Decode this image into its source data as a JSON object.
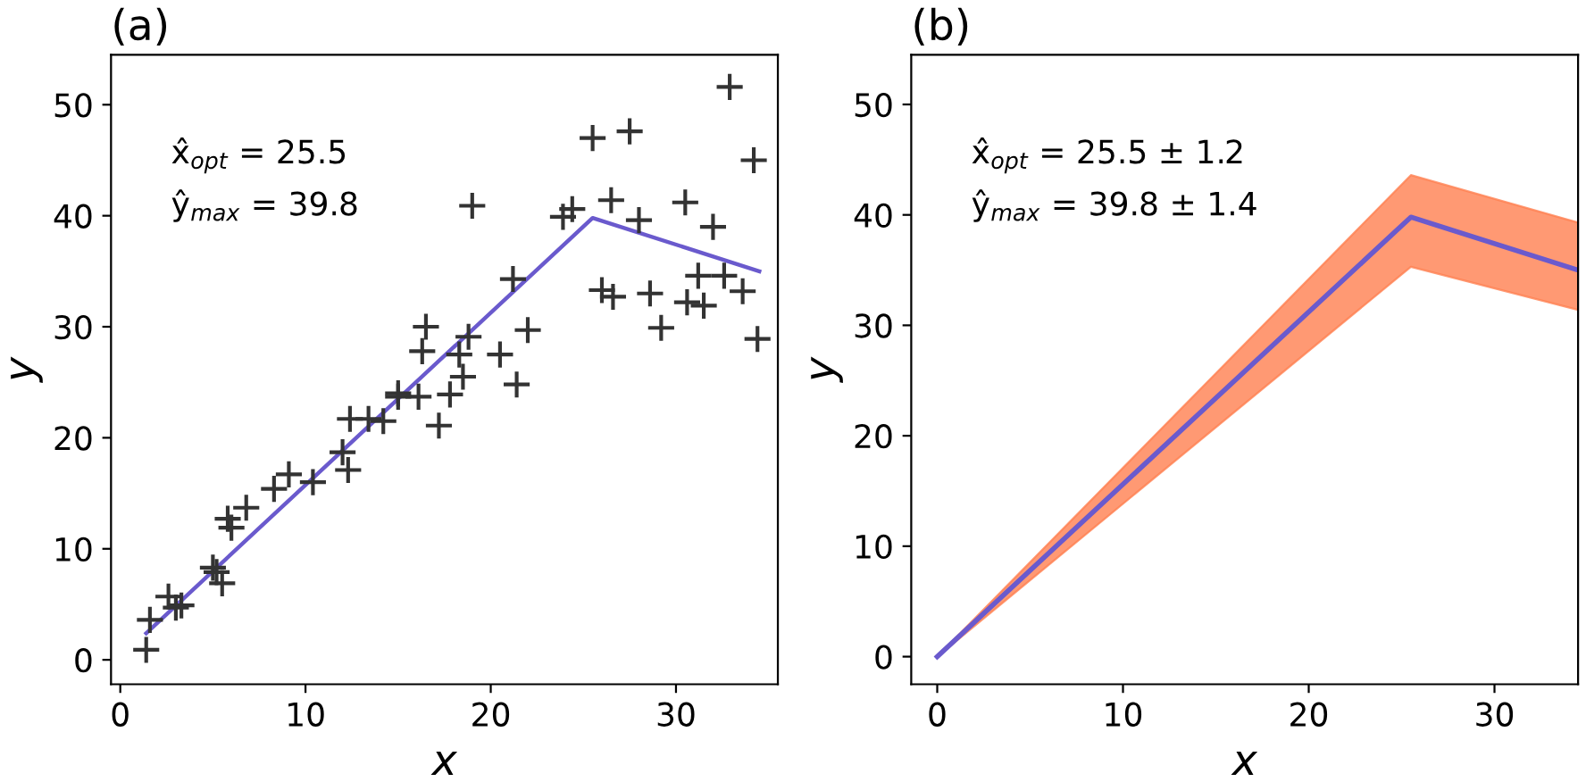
{
  "chart_data": [
    {
      "type": "scatter",
      "title": "(a)",
      "xlabel": "x",
      "ylabel": "y",
      "xlim": [
        -0.5,
        35.5
      ],
      "ylim": [
        -2.2,
        54.5
      ],
      "xticks": [
        0,
        10,
        20,
        30
      ],
      "yticks": [
        0,
        10,
        20,
        30,
        40,
        50
      ],
      "grid": false,
      "legend": false,
      "annotations": [
        "x̂$_{opt}$ = 25.5",
        "ŷ$_{max}$ = 39.8"
      ],
      "series": [
        {
          "marker": "cross",
          "color": "#333333",
          "x": [
            1.4,
            1.6,
            2.6,
            3.0,
            3.3,
            5.0,
            5.2,
            5.5,
            5.8,
            6.0,
            6.8,
            8.3,
            9.1,
            10.4,
            12.0,
            12.3,
            12.4,
            13.4,
            14.2,
            15.0,
            15.0,
            16.1,
            16.3,
            16.5,
            17.2,
            17.8,
            18.3,
            18.5,
            18.8,
            19.0,
            20.5,
            21.2,
            21.4,
            22.0,
            23.9,
            24.4,
            25.5,
            26.0,
            26.5,
            26.6,
            27.5,
            28.0,
            28.6,
            29.2,
            30.5,
            30.6,
            31.2,
            31.5,
            32.0,
            32.6,
            32.9,
            33.6,
            34.2,
            34.4
          ],
          "values": [
            0.9,
            3.6,
            5.7,
            4.7,
            4.9,
            8.3,
            7.9,
            6.9,
            12.7,
            11.9,
            13.7,
            15.4,
            16.7,
            16.0,
            18.7,
            17.1,
            21.7,
            21.7,
            21.5,
            24.0,
            23.7,
            23.7,
            27.8,
            30.0,
            21.1,
            23.9,
            27.5,
            25.5,
            29.1,
            40.9,
            27.5,
            34.3,
            24.8,
            29.7,
            39.9,
            40.6,
            47.0,
            33.3,
            41.4,
            32.7,
            47.6,
            39.6,
            33.0,
            29.9,
            41.2,
            32.2,
            34.6,
            31.9,
            39.0,
            34.6,
            51.6,
            33.2,
            45.0,
            28.9
          ]
        },
        {
          "type": "line",
          "color": "#6a5acd",
          "x": [
            1.4,
            25.5,
            34.5
          ],
          "values": [
            2.4,
            39.8,
            35.0
          ]
        }
      ]
    },
    {
      "type": "line",
      "title": "(b)",
      "xlabel": "x",
      "ylabel": "y",
      "xlim": [
        -1.4,
        34.5
      ],
      "ylim": [
        -2.5,
        54.5
      ],
      "xticks": [
        0,
        10,
        20,
        30
      ],
      "yticks": [
        0,
        10,
        20,
        30,
        40,
        50
      ],
      "grid": false,
      "legend": false,
      "annotations": [
        "x̂$_{opt}$ = 25.5 ± 1.2",
        "ŷ$_{max}$ = 39.8 ± 1.4"
      ],
      "series": [
        {
          "color": "#6a5acd",
          "x": [
            0,
            25.5,
            34.5
          ],
          "values": [
            0,
            39.8,
            35.0
          ],
          "lower": [
            0,
            35.3,
            31.4
          ],
          "upper": [
            0,
            43.6,
            39.3
          ]
        }
      ]
    }
  ]
}
